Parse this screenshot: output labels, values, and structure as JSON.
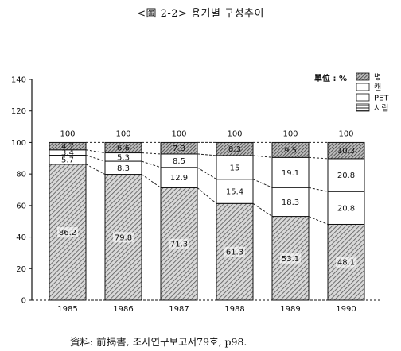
{
  "chart_data": {
    "type": "bar",
    "stacked": true,
    "title": "<圖 2-2> 용기별 구성추이",
    "unit_label": "單位 : %",
    "source": "資料: 前揭書, 조사연구보고서79호, p98.",
    "categories": [
      "1985",
      "1986",
      "1987",
      "1988",
      "1989",
      "1990"
    ],
    "totals": [
      "100",
      "100",
      "100",
      "100",
      "100",
      "100"
    ],
    "ylim": [
      0,
      140
    ],
    "yticks": [
      0,
      20,
      40,
      60,
      80,
      100,
      120,
      140
    ],
    "legend_position": "top-right",
    "series": [
      {
        "name": "시립",
        "pattern": "hatched",
        "values": [
          86.2,
          79.8,
          71.3,
          61.3,
          53.1,
          48.1
        ]
      },
      {
        "name": "PET",
        "pattern": "white",
        "values": [
          5.7,
          8.3,
          12.9,
          15.4,
          18.3,
          20.8
        ]
      },
      {
        "name": "캔",
        "pattern": "white",
        "values": [
          3.4,
          5.3,
          8.5,
          15,
          19.1,
          20.8
        ]
      },
      {
        "name": "병",
        "pattern": "hatched-light",
        "values": [
          4.7,
          6.6,
          7.3,
          8.3,
          9.5,
          10.3
        ]
      }
    ],
    "legend": [
      "병",
      "캔",
      "PET",
      "시립"
    ]
  }
}
